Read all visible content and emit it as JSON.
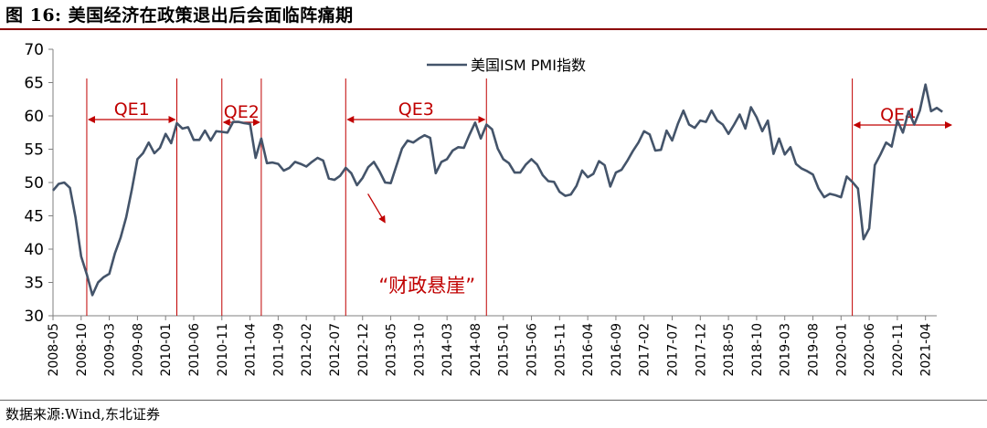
{
  "header": {
    "figure_title": "图 16:  美国经济在政策退出后会面临阵痛期"
  },
  "footer": {
    "source": "数据来源:Wind,东北证券"
  },
  "chart_data": {
    "type": "line",
    "title": "",
    "xlabel": "",
    "ylabel": "",
    "ylim": [
      30,
      70
    ],
    "yticks": [
      30,
      35,
      40,
      45,
      50,
      55,
      60,
      65,
      70
    ],
    "grid": false,
    "legend_position": "top-center",
    "x_tick_labels": [
      "2008-05",
      "2008-10",
      "2009-03",
      "2009-08",
      "2010-01",
      "2010-06",
      "2010-11",
      "2011-04",
      "2011-09",
      "2012-02",
      "2012-07",
      "2012-12",
      "2013-05",
      "2013-10",
      "2014-03",
      "2014-08",
      "2015-01",
      "2015-06",
      "2015-11",
      "2016-04",
      "2016-09",
      "2017-02",
      "2017-07",
      "2017-12",
      "2018-05",
      "2018-10",
      "2019-03",
      "2019-08",
      "2020-01",
      "2020-06",
      "2020-11",
      "2021-04"
    ],
    "x_start": "2008-05",
    "x_end": "2021-06",
    "series": [
      {
        "name": "美国ISM PMI指数",
        "color": "#44546A",
        "values": [
          48.8,
          49.8,
          50.0,
          49.2,
          44.8,
          38.9,
          36.2,
          33.1,
          35.0,
          35.8,
          36.3,
          39.4,
          41.7,
          44.8,
          48.9,
          53.5,
          54.4,
          56.0,
          54.4,
          55.2,
          57.3,
          55.9,
          58.9,
          58.1,
          58.3,
          56.4,
          56.4,
          57.8,
          56.3,
          57.7,
          57.6,
          57.5,
          59.1,
          59.1,
          58.9,
          58.8,
          53.7,
          56.6,
          52.9,
          53.0,
          52.8,
          51.8,
          52.2,
          53.1,
          52.8,
          52.4,
          53.1,
          53.7,
          53.3,
          50.6,
          50.4,
          51.0,
          52.2,
          51.4,
          49.6,
          50.7,
          52.3,
          53.1,
          51.7,
          50.0,
          49.9,
          52.5,
          55.1,
          56.3,
          56.0,
          56.6,
          57.1,
          56.7,
          51.4,
          53.1,
          53.5,
          54.8,
          55.3,
          55.2,
          57.2,
          59.0,
          56.6,
          58.7,
          58.0,
          55.1,
          53.5,
          52.9,
          51.5,
          51.5,
          52.7,
          53.5,
          52.7,
          51.1,
          50.2,
          50.1,
          48.6,
          48.0,
          48.2,
          49.5,
          51.8,
          50.8,
          51.3,
          53.2,
          52.6,
          49.4,
          51.5,
          51.9,
          53.2,
          54.7,
          56.0,
          57.7,
          57.2,
          54.8,
          54.9,
          57.8,
          56.3,
          58.8,
          60.8,
          58.7,
          58.2,
          59.3,
          59.1,
          60.8,
          59.3,
          58.7,
          57.3,
          58.7,
          60.2,
          58.1,
          61.3,
          59.8,
          57.7,
          59.3,
          54.3,
          56.6,
          54.2,
          55.3,
          52.8,
          52.1,
          51.7,
          51.2,
          49.1,
          47.8,
          48.3,
          48.1,
          47.8,
          50.9,
          50.1,
          49.1,
          41.5,
          43.1,
          52.6,
          54.2,
          56.0,
          55.4,
          59.3,
          57.5,
          60.7,
          58.7,
          60.8,
          64.7,
          60.7,
          61.2,
          60.6
        ]
      }
    ],
    "annotations": [
      {
        "label": "QE1",
        "start": "2008-11",
        "end": "2010-03"
      },
      {
        "label": "QE2",
        "start": "2010-11",
        "end": "2011-06"
      },
      {
        "label": "QE3",
        "start": "2012-09",
        "end": "2014-10"
      },
      {
        "label": "QE4",
        "start": "2020-03",
        "end": "2021-06"
      },
      {
        "label": "“财政悬崖”"
      }
    ],
    "annotation_color": "#C00000"
  }
}
